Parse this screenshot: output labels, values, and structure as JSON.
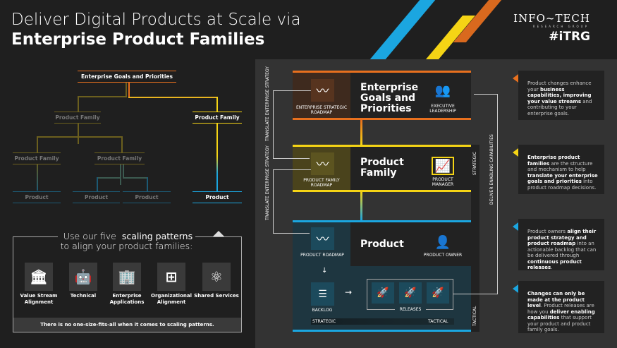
{
  "header": {
    "title_line1": "Deliver Digital Products at Scale via",
    "title_line2": "Enterprise Product Families",
    "logo": "INFO~TECH",
    "logo_sub": "RESEARCH GROUP",
    "logo_tag": "#iTRG"
  },
  "colors": {
    "orange": "#e8701e",
    "yellow": "#f5d415",
    "blue": "#1ba6e0",
    "panel": "#333333"
  },
  "tree": {
    "root": "Enterprise Goals and Priorities",
    "families": [
      "Product Family",
      "Product Family",
      "Product Family",
      "Product Family"
    ],
    "products": [
      "Product",
      "Product",
      "Product",
      "Product"
    ]
  },
  "scaling": {
    "heading_pre": "Use our five ",
    "heading_bold": "scaling patterns",
    "heading_post": "to align your product families:",
    "patterns": [
      {
        "label": "Value Stream Alignment",
        "icon": "bank-icon"
      },
      {
        "label": "Technical",
        "icon": "robot-icon"
      },
      {
        "label": "Enterprise Applications",
        "icon": "building-icon"
      },
      {
        "label": "Organizational Alignment",
        "icon": "org-chart-icon"
      },
      {
        "label": "Shared Services",
        "icon": "network-icon"
      }
    ],
    "footer": "There is no one-size-fits-all when it comes to scaling patterns."
  },
  "diagram": {
    "enterprise": {
      "title": "Enterprise Goals and Priorities",
      "roadmap": "ENTERPRISE STRATEGIC ROADMAP",
      "role": "EXECUTIVE LEADERSHIP"
    },
    "family": {
      "title": "Product Family",
      "roadmap": "PRODUCT FAMILY ROADMAP",
      "role": "PRODUCT MANAGER"
    },
    "product": {
      "title": "Product",
      "roadmap": "PRODUCT ROADMAP",
      "role": "PRODUCT OWNER",
      "backlog": "BACKLOG",
      "releases": "RELEASES",
      "strategic": "STRATEGIC",
      "tactical": "TACTICAL"
    },
    "translate1": "TRANSLATE ENTERPRISE STRATEGY",
    "translate2": "TRANSLATE ENTERPRISE STRATEGY",
    "deliver": "DELIVER ENABLING CAPABILITIES",
    "side_strategic": "STRATEGIC",
    "side_tactical": "TACTICAL"
  },
  "captions": [
    {
      "parts": [
        [
          "Product changes enhance your ",
          0
        ],
        [
          "business capabilities, improving your value streams",
          1
        ],
        [
          " and contributing to your enterprise goals.",
          0
        ]
      ]
    },
    {
      "parts": [
        [
          "Enterprise product families",
          1
        ],
        [
          " are the structure and mechanism to help ",
          0
        ],
        [
          "translate your enterprise goals and priorities",
          1
        ],
        [
          " into product roadmap decisions.",
          0
        ]
      ]
    },
    {
      "parts": [
        [
          "Product owners ",
          0
        ],
        [
          "align their product strategy and product roadmap",
          1
        ],
        [
          " into an actionable backlog that can be delivered through ",
          0
        ],
        [
          "continuous product releases",
          1
        ],
        [
          ".",
          0
        ]
      ]
    },
    {
      "parts": [
        [
          "Changes can only be made at the product level",
          1
        ],
        [
          ". Product releases are how you ",
          0
        ],
        [
          "deliver enabling capabilities",
          1
        ],
        [
          " that support your product and product family goals.",
          0
        ]
      ]
    }
  ]
}
